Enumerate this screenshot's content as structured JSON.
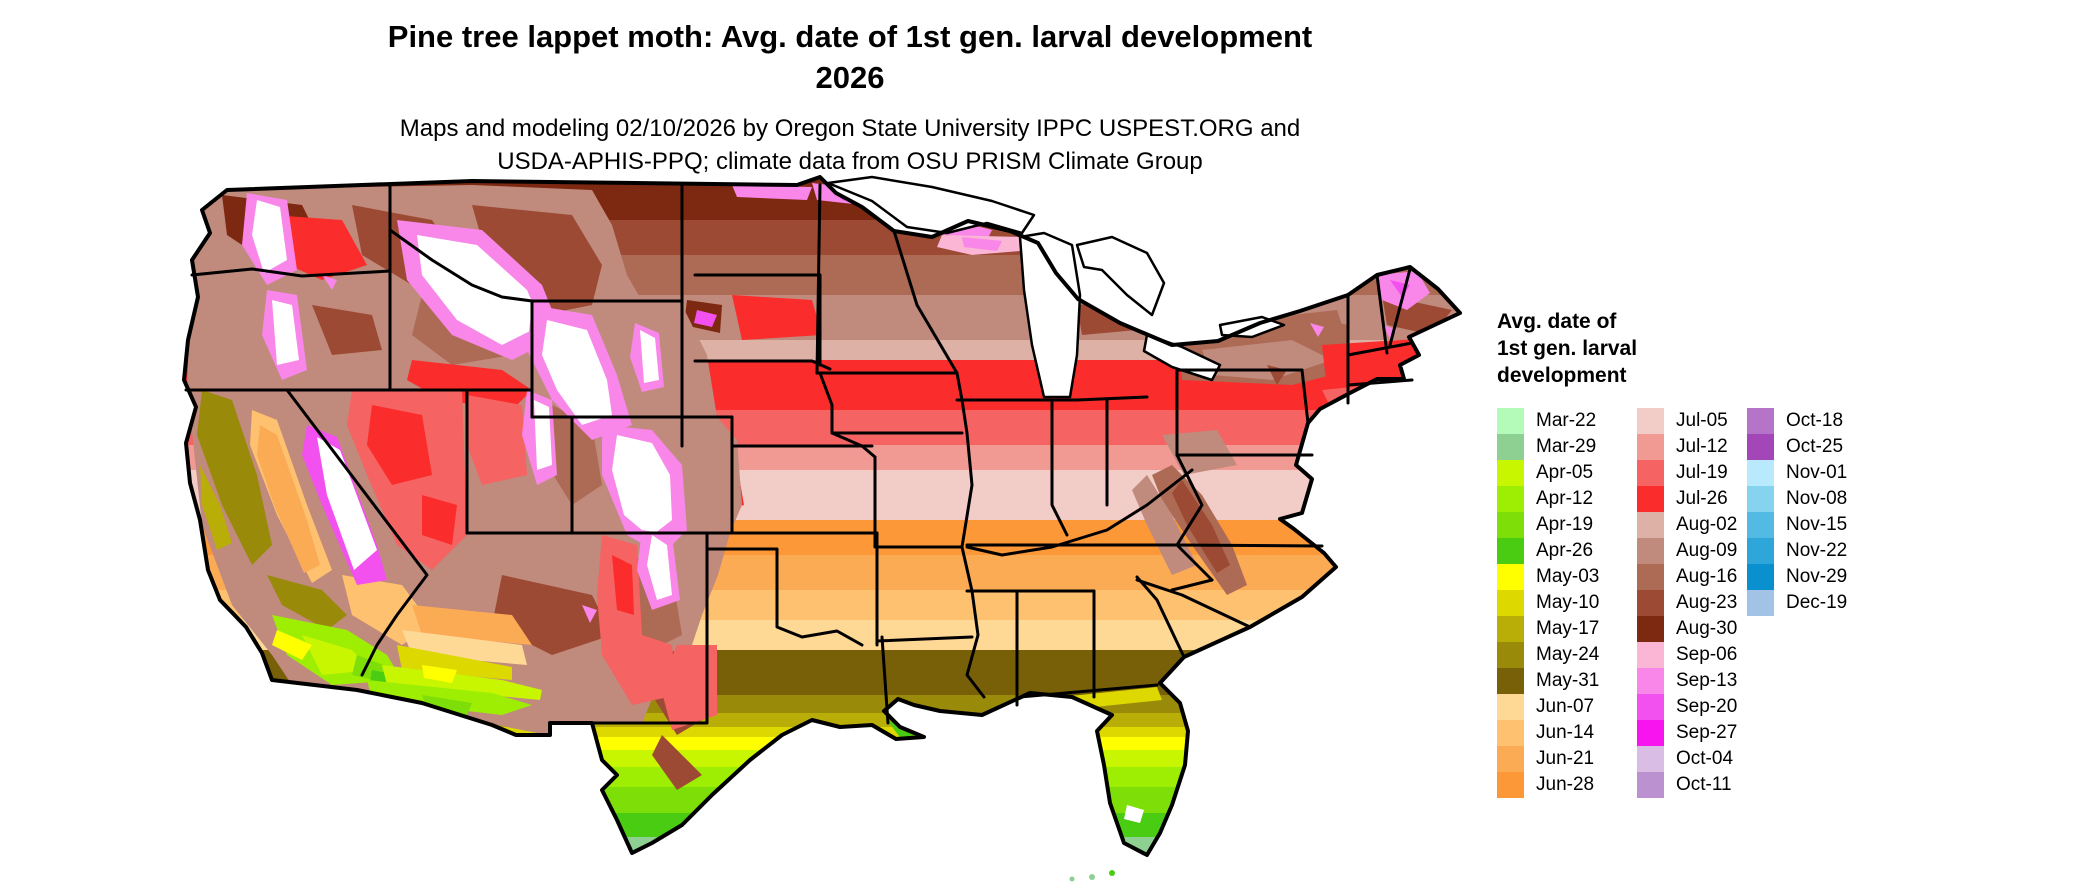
{
  "header": {
    "title_line1": "Pine tree lappet moth: Avg. date of 1st gen. larval development",
    "title_line2": "2026",
    "subtitle_line1": "Maps and modeling 02/10/2026 by Oregon State University IPPC USPEST.ORG and",
    "subtitle_line2": "USDA-APHIS-PPQ; climate data from OSU PRISM Climate Group"
  },
  "legend": {
    "title_lines": [
      "Avg. date of",
      "1st gen. larval",
      "development"
    ],
    "columns": [
      {
        "entries": [
          {
            "label": "Mar-22",
            "color": "#b4fab8"
          },
          {
            "label": "Mar-29",
            "color": "#8ed092"
          },
          {
            "label": "Apr-05",
            "color": "#c8f600"
          },
          {
            "label": "Apr-12",
            "color": "#9eee04"
          },
          {
            "label": "Apr-19",
            "color": "#7ede08"
          },
          {
            "label": "Apr-26",
            "color": "#4acc12"
          },
          {
            "label": "May-03",
            "color": "#ffff00"
          },
          {
            "label": "May-10",
            "color": "#dcd800"
          },
          {
            "label": "May-17",
            "color": "#b9ad08"
          },
          {
            "label": "May-24",
            "color": "#998a0a"
          },
          {
            "label": "May-31",
            "color": "#786008"
          },
          {
            "label": "Jun-07",
            "color": "#fed895"
          },
          {
            "label": "Jun-14",
            "color": "#fec170"
          },
          {
            "label": "Jun-21",
            "color": "#fcab55"
          },
          {
            "label": "Jun-28",
            "color": "#fc9838"
          }
        ]
      },
      {
        "entries": [
          {
            "label": "Jul-05",
            "color": "#f2ccc6"
          },
          {
            "label": "Jul-12",
            "color": "#f19a93"
          },
          {
            "label": "Jul-19",
            "color": "#f56362"
          },
          {
            "label": "Jul-26",
            "color": "#fb2c2c"
          },
          {
            "label": "Aug-02",
            "color": "#deb1a6"
          },
          {
            "label": "Aug-09",
            "color": "#c08a7d"
          },
          {
            "label": "Aug-16",
            "color": "#ad6a55"
          },
          {
            "label": "Aug-23",
            "color": "#9c4a33"
          },
          {
            "label": "Aug-30",
            "color": "#7d2811"
          },
          {
            "label": "Sep-06",
            "color": "#fbb5d5"
          },
          {
            "label": "Sep-13",
            "color": "#f986e9"
          },
          {
            "label": "Sep-20",
            "color": "#f251ef"
          },
          {
            "label": "Sep-27",
            "color": "#f814ee"
          },
          {
            "label": "Oct-04",
            "color": "#d9bde5"
          },
          {
            "label": "Oct-11",
            "color": "#bb91d0"
          }
        ]
      },
      {
        "entries": [
          {
            "label": "Oct-18",
            "color": "#b574c8"
          },
          {
            "label": "Oct-25",
            "color": "#a347b8"
          },
          {
            "label": "Nov-01",
            "color": "#b9e9fc"
          },
          {
            "label": "Nov-08",
            "color": "#86d3f0"
          },
          {
            "label": "Nov-15",
            "color": "#53bae3"
          },
          {
            "label": "Nov-22",
            "color": "#2ea6d9"
          },
          {
            "label": "Nov-29",
            "color": "#0b90cf"
          },
          {
            "label": "Dec-19",
            "color": "#a1c3e5"
          }
        ]
      }
    ]
  }
}
